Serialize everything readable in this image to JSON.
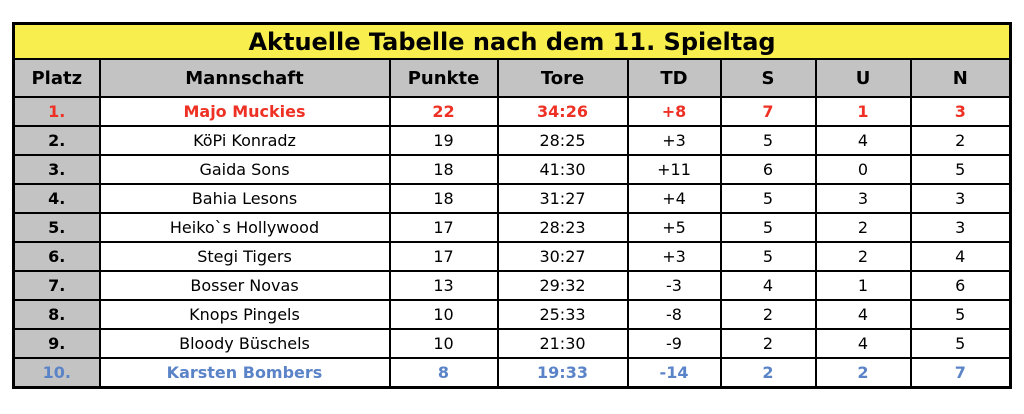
{
  "title": "Aktuelle Tabelle nach dem 11. Spieltag",
  "colors": {
    "title_bg": "#F8EF4E",
    "header_bg": "#C3C3C3",
    "platz_bg": "#C3C3C3",
    "first_color": "#EE3124",
    "last_color": "#5B84C8",
    "border_color": "#000000",
    "text_color": "#000000",
    "page_bg": "#FFFFFF"
  },
  "row_styles": [
    "first",
    "",
    "",
    "",
    "",
    "",
    "",
    "",
    "",
    "last"
  ],
  "chart_data": {
    "type": "table",
    "title": "Aktuelle Tabelle nach dem 11. Spieltag",
    "columns": [
      "Platz",
      "Mannschaft",
      "Punkte",
      "Tore",
      "TD",
      "S",
      "U",
      "N"
    ],
    "rows": [
      [
        "1.",
        "Majo Muckies",
        "22",
        "34:26",
        "+8",
        "7",
        "1",
        "3"
      ],
      [
        "2.",
        "KöPi Konradz",
        "19",
        "28:25",
        "+3",
        "5",
        "4",
        "2"
      ],
      [
        "3.",
        "Gaida Sons",
        "18",
        "41:30",
        "+11",
        "6",
        "0",
        "5"
      ],
      [
        "4.",
        "Bahia Lesons",
        "18",
        "31:27",
        "+4",
        "5",
        "3",
        "3"
      ],
      [
        "5.",
        "Heiko`s Hollywood",
        "17",
        "28:23",
        "+5",
        "5",
        "2",
        "3"
      ],
      [
        "6.",
        "Stegi Tigers",
        "17",
        "30:27",
        "+3",
        "5",
        "2",
        "4"
      ],
      [
        "7.",
        "Bosser Novas",
        "13",
        "29:32",
        "-3",
        "4",
        "1",
        "6"
      ],
      [
        "8.",
        "Knops Pingels",
        "10",
        "25:33",
        "-8",
        "2",
        "4",
        "5"
      ],
      [
        "9.",
        "Bloody Büschels",
        "10",
        "21:30",
        "-9",
        "2",
        "4",
        "5"
      ],
      [
        "10.",
        "Karsten Bombers",
        "8",
        "19:33",
        "-14",
        "2",
        "2",
        "7"
      ]
    ]
  }
}
